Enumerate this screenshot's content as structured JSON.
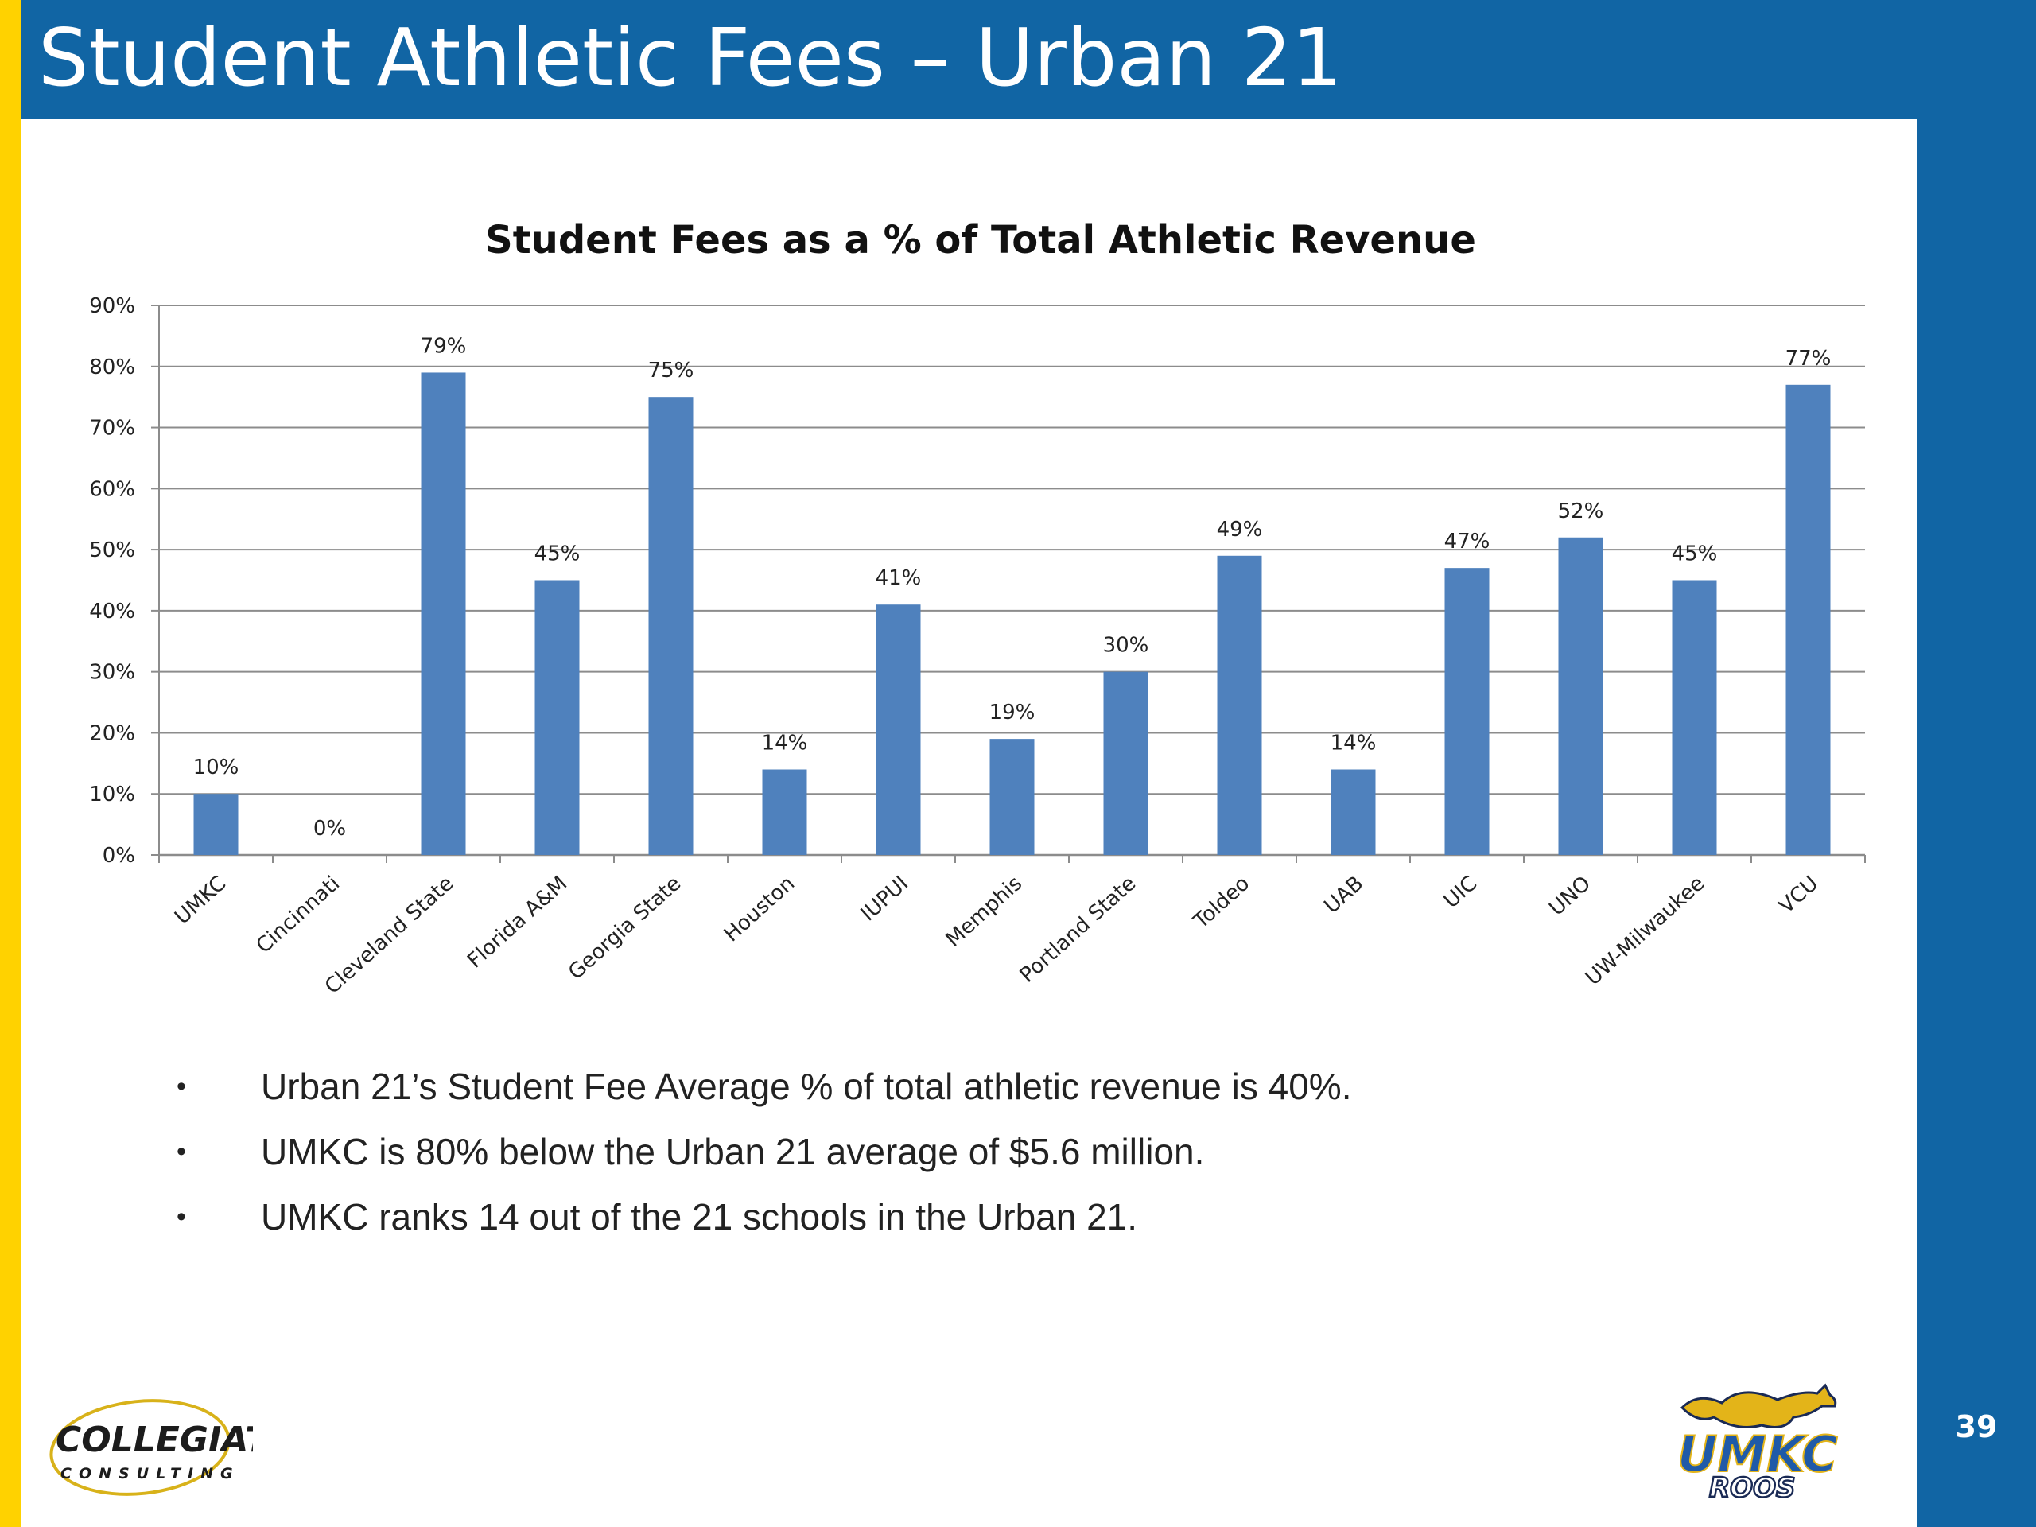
{
  "slide": {
    "title": "Student Athletic Fees – Urban 21",
    "page_number": "39"
  },
  "colors": {
    "title_bar": "#1165a4",
    "accent_bar": "#ffd200",
    "bar_fill": "#4f81bd"
  },
  "chart_data": {
    "type": "bar",
    "title": "Student Fees as a % of Total Athletic Revenue",
    "xlabel": "",
    "ylabel": "",
    "ylim": [
      0,
      90
    ],
    "y_ticks": [
      "0%",
      "10%",
      "20%",
      "30%",
      "40%",
      "50%",
      "60%",
      "70%",
      "80%",
      "90%"
    ],
    "grid": true,
    "legend": "none",
    "categories": [
      "UMKC",
      "Cincinnati",
      "Cleveland State",
      "Florida A&M",
      "Georgia State",
      "Houston",
      "IUPUI",
      "Memphis",
      "Portland State",
      "Toldeo",
      "UAB",
      "UIC",
      "UNO",
      "UW-Milwaukee",
      "VCU"
    ],
    "values": [
      10,
      0,
      79,
      45,
      75,
      14,
      41,
      19,
      30,
      49,
      14,
      47,
      52,
      45,
      77
    ],
    "data_labels": [
      "10%",
      "0%",
      "79%",
      "45%",
      "75%",
      "14%",
      "41%",
      "19%",
      "30%",
      "49%",
      "14%",
      "47%",
      "52%",
      "45%",
      "77%"
    ]
  },
  "bullets": [
    "Urban 21’s Student Fee Average % of total athletic revenue is 40%.",
    "UMKC is 80% below the Urban 21 average of $5.6 million.",
    "UMKC ranks 14 out of the 21 schools in the Urban 21."
  ],
  "bullet_symbol": "•",
  "logos": {
    "collegiate_line1": "COLLEGIATE",
    "collegiate_line2": "CONSULTING",
    "umkc_text": "UMKC",
    "roos_text": "ROOS"
  }
}
